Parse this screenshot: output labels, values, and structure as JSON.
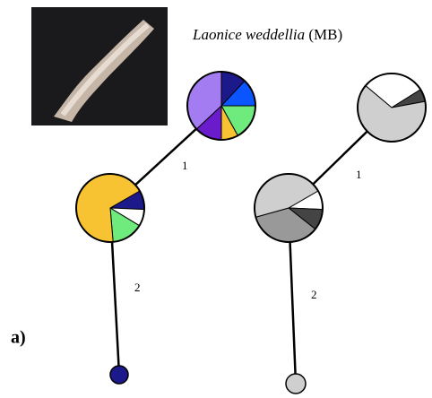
{
  "title": {
    "species": "Laonice weddellia",
    "suffix": "(MB)"
  },
  "panel_label": "a)",
  "networks": [
    {
      "nodes": [
        {
          "slices": [
            {
              "color": "#1c1a8a",
              "value": 12
            },
            {
              "color": "#0a55ff",
              "value": 13
            },
            {
              "color": "#6fea7c",
              "value": 17
            },
            {
              "color": "#f7c332",
              "value": 8
            },
            {
              "color": "#6a1ccc",
              "value": 13
            },
            {
              "color": "#a47cf2",
              "value": 37
            }
          ]
        },
        {
          "slices": [
            {
              "color": "#1c1a8a",
              "value": 9
            },
            {
              "color": "#ffffff",
              "value": 8
            },
            {
              "color": "#6fea7c",
              "value": 15
            },
            {
              "color": "#f7c332",
              "value": 68
            }
          ]
        },
        {
          "slices": [
            {
              "color": "#1c1a8a",
              "value": 100
            }
          ]
        }
      ],
      "edge_labels": [
        "1",
        "2"
      ]
    },
    {
      "nodes": [
        {
          "slices": [
            {
              "color": "#ffffff",
              "value": 30
            },
            {
              "color": "#444444",
              "value": 6
            },
            {
              "color": "#cfcfcf",
              "value": 64
            }
          ]
        },
        {
          "slices": [
            {
              "color": "#ffffff",
              "value": 9
            },
            {
              "color": "#444444",
              "value": 10
            },
            {
              "color": "#999999",
              "value": 35
            },
            {
              "color": "#cfcfcf",
              "value": 46
            }
          ]
        },
        {
          "slices": [
            {
              "color": "#cfcfcf",
              "value": 100
            }
          ]
        }
      ],
      "edge_labels": [
        "1",
        "2"
      ]
    }
  ]
}
